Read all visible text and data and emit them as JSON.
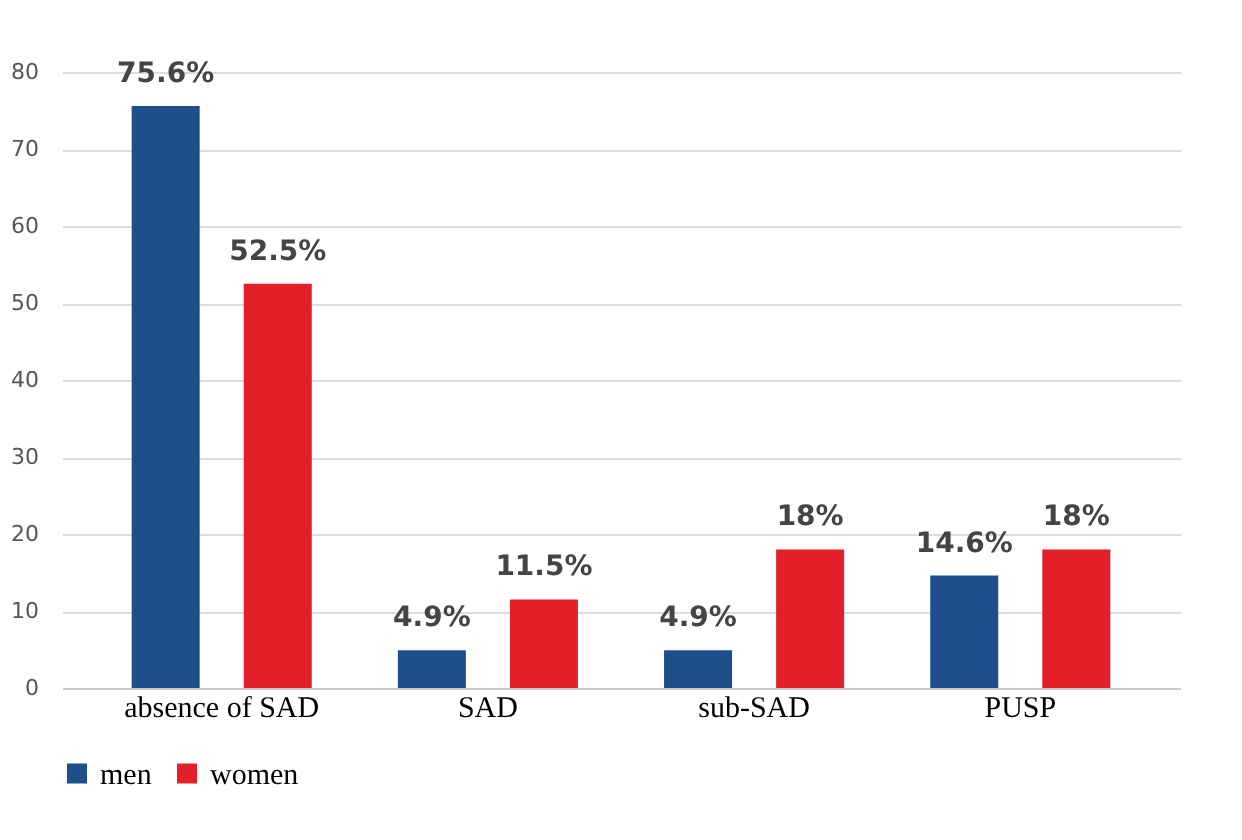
{
  "chart_data": {
    "type": "bar",
    "categories": [
      "absence of SAD",
      "SAD",
      "sub-SAD",
      "PUSP"
    ],
    "series": [
      {
        "name": "men",
        "color": "#1f4e8c",
        "values": [
          75.6,
          4.9,
          4.9,
          14.6
        ],
        "value_labels": [
          "75.6%",
          "4.9%",
          "4.9%",
          "14.6%"
        ]
      },
      {
        "name": "women",
        "color": "#e3202a",
        "values": [
          52.5,
          11.5,
          18,
          18
        ],
        "value_labels": [
          "52.5%",
          "11.5%",
          "18%",
          "18%"
        ]
      }
    ],
    "ylim": [
      0,
      80
    ],
    "yticks": [
      0,
      10,
      20,
      30,
      40,
      50,
      60,
      70,
      80
    ],
    "grid": "y",
    "legend": "bottom"
  }
}
